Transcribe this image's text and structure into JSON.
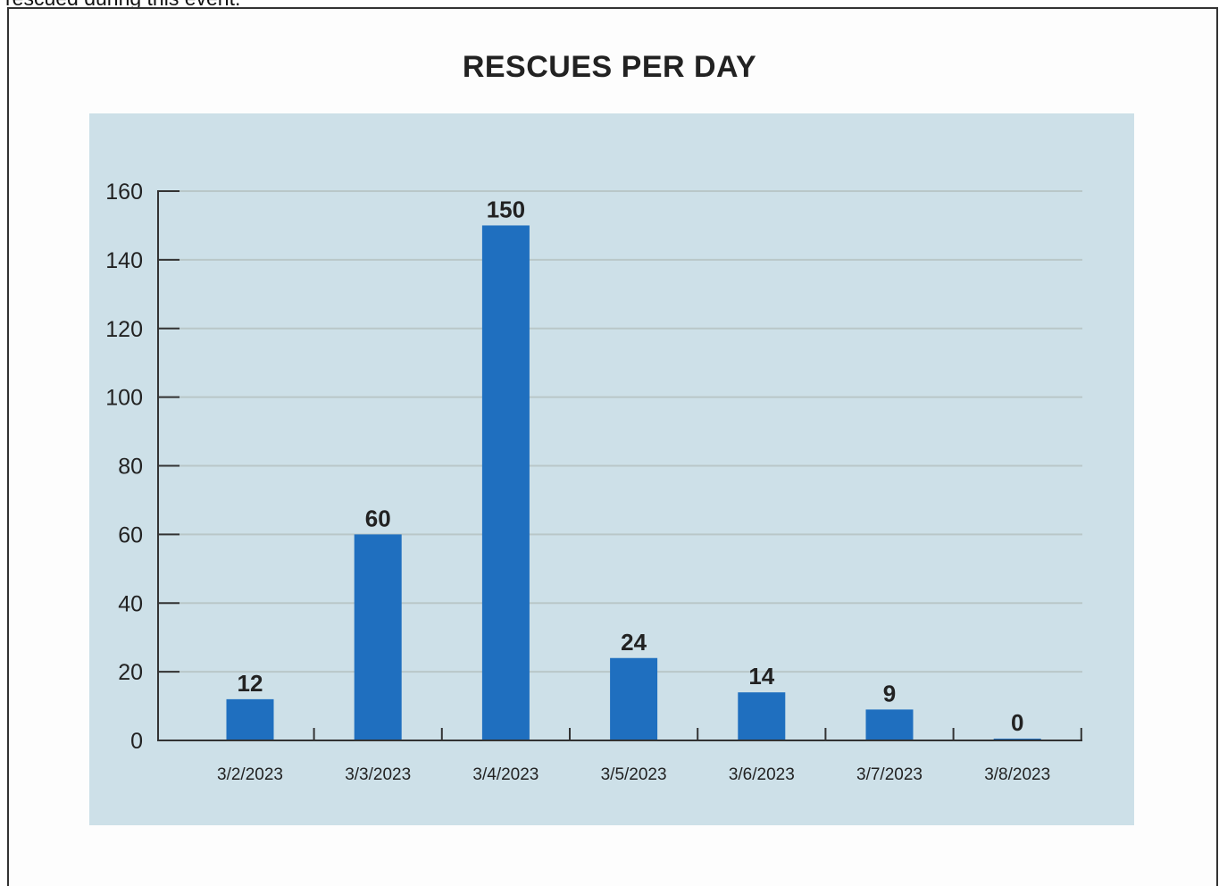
{
  "page": {
    "intro_text": "rescued during this event."
  },
  "colors": {
    "panel_background": "#cde0e8",
    "bar": "#1f6fbf",
    "grid": "#b9c7c8",
    "axis": "#333333"
  },
  "chart_data": {
    "type": "bar",
    "title": "RESCUES PER DAY",
    "xlabel": "",
    "ylabel": "",
    "categories": [
      "3/2/2023",
      "3/3/2023",
      "3/4/2023",
      "3/5/2023",
      "3/6/2023",
      "3/7/2023",
      "3/8/2023"
    ],
    "values": [
      12,
      60,
      150,
      24,
      14,
      9,
      0
    ],
    "data_labels": [
      "12",
      "60",
      "150",
      "24",
      "14",
      "9",
      "0"
    ],
    "ylim": [
      0,
      160
    ],
    "yticks": [
      0,
      20,
      40,
      60,
      80,
      100,
      120,
      140,
      160
    ],
    "grid": true,
    "legend": "none"
  }
}
